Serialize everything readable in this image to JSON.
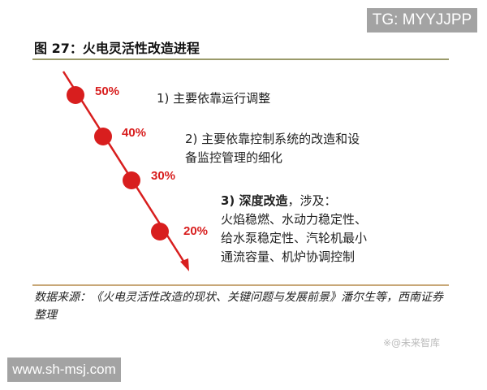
{
  "watermark_top": "TG: MYYJJPP",
  "watermark_bottom": "www.sh-msj.com",
  "figure_title": "图 27：火电灵活性改造进程",
  "stages": [
    {
      "percent": "50%",
      "lines": [
        "1) 主要依靠运行调整"
      ]
    },
    {
      "percent": "40%",
      "lines": [
        "2) 主要依靠控制系统的改造和设",
        "备监控管理的细化"
      ]
    },
    {
      "percent": "30%",
      "heading": "3) 深度改造",
      "lines": [
        "，涉及：",
        "火焰稳燃、水动力稳定性、",
        "给水泵稳定性、汽轮机最小",
        "通流容量、机炉协调控制"
      ]
    },
    {
      "percent": "20%"
    }
  ],
  "source": "数据来源：《火电灵活性改造的现状、关键问题与发展前景》潘尔生等，西南证券整理",
  "credit": "※@未来智库",
  "colors": {
    "accent": "#d81e1e",
    "rule_top": "#9a9a6a",
    "rule_bottom": "#c8a878"
  }
}
